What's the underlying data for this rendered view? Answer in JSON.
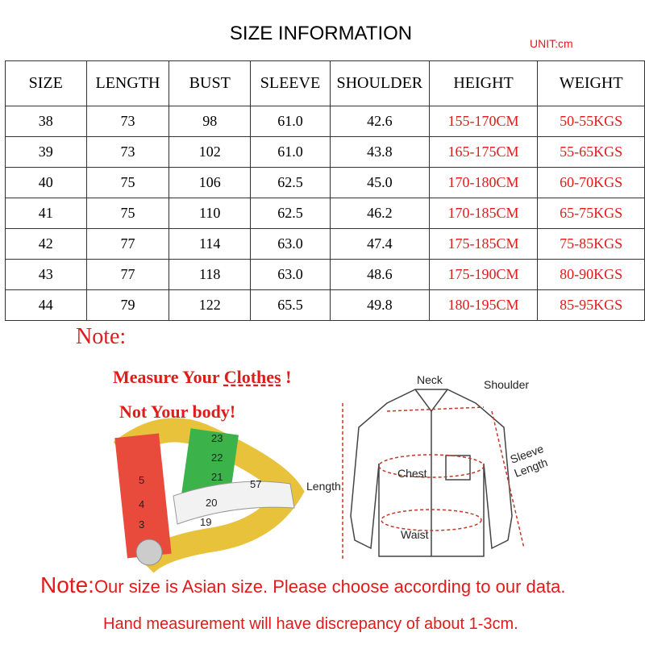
{
  "header": {
    "title": "SIZE  INFORMATION",
    "unit": "UNIT:cm"
  },
  "table": {
    "columns": [
      "SIZE",
      "LENGTH",
      "BUST",
      "SLEEVE",
      "SHOULDER",
      "HEIGHT",
      "WEIGHT"
    ],
    "rows": [
      [
        "38",
        "73",
        "98",
        "61.0",
        "42.6",
        "155-170CM",
        "50-55KGS"
      ],
      [
        "39",
        "73",
        "102",
        "61.0",
        "43.8",
        "165-175CM",
        "55-65KGS"
      ],
      [
        "40",
        "75",
        "106",
        "62.5",
        "45.0",
        "170-180CM",
        "60-70KGS"
      ],
      [
        "41",
        "75",
        "110",
        "62.5",
        "46.2",
        "170-185CM",
        "65-75KGS"
      ],
      [
        "42",
        "77",
        "114",
        "63.0",
        "47.4",
        "175-185CM",
        "75-85KGS"
      ],
      [
        "43",
        "77",
        "118",
        "63.0",
        "48.6",
        "175-190CM",
        "80-90KGS"
      ],
      [
        "44",
        "79",
        "122",
        "65.5",
        "49.8",
        "180-195CM",
        "85-95KGS"
      ]
    ]
  },
  "note": {
    "heading": "Note:",
    "measure": "Measure Your ",
    "clothes": "Clothes",
    "exclaim": " !",
    "body": "Not Your body!"
  },
  "tape": {
    "marks": [
      "23",
      "22",
      "21",
      "20",
      "19",
      "5",
      "4",
      "3",
      "57"
    ]
  },
  "diagram": {
    "neck": "Neck",
    "shoulder": "Shoulder",
    "chest": "Chest",
    "waist": "Waist",
    "length": "Length",
    "sleeve": "Sleeve",
    "sleeve_length": "Length"
  },
  "footer": {
    "note": "Note:",
    "line1": "Our size is Asian size. Please choose according to our data.",
    "line2": "Hand measurement will have discrepancy of about 1-3cm."
  }
}
